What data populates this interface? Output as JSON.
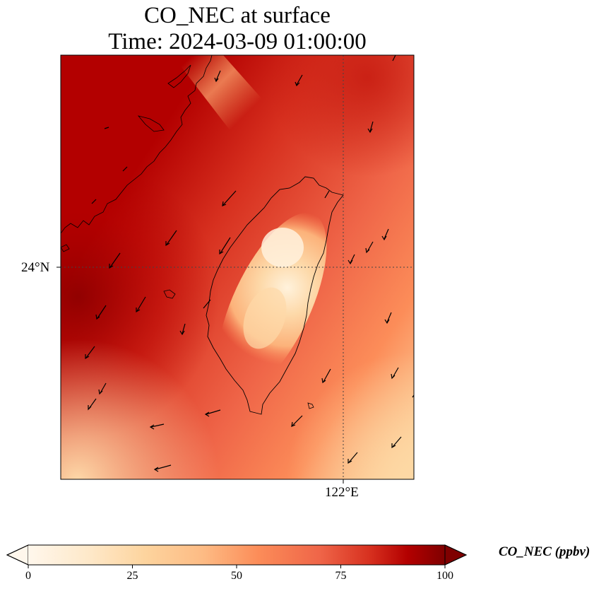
{
  "title": {
    "line1": "CO_NEC at surface",
    "line2": "Time: 2024-03-09 01:00:00"
  },
  "map": {
    "lat_ticks": [
      {
        "value": 24,
        "label": "24°N"
      }
    ],
    "lon_ticks": [
      {
        "value": 122,
        "label": "122°E"
      }
    ],
    "gridline_style": "dotted",
    "features": [
      "coastline",
      "wind-vectors"
    ]
  },
  "colorbar": {
    "label": "CO_NEC (ppbv)",
    "min": 0,
    "max": 100,
    "extend": "both",
    "colormap": "OrRd",
    "ticks": [
      {
        "value": 0,
        "label": "0"
      },
      {
        "value": 25,
        "label": "25"
      },
      {
        "value": 50,
        "label": "50"
      },
      {
        "value": 75,
        "label": "75"
      },
      {
        "value": 100,
        "label": "100"
      }
    ],
    "colors": [
      "#fff7ec",
      "#fdd49e",
      "#fc8d59",
      "#d7301f",
      "#b30000",
      "#7f0000"
    ]
  }
}
